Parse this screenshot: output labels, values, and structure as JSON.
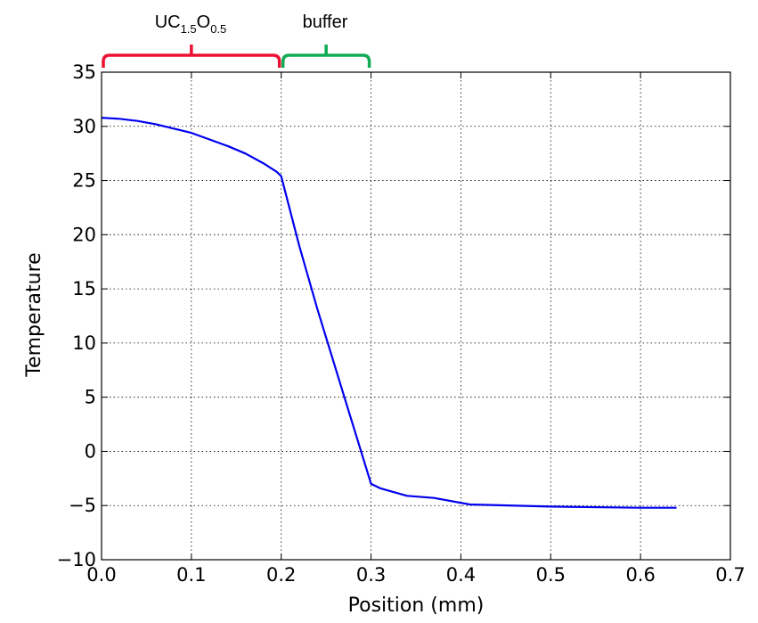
{
  "chart_data": {
    "type": "line",
    "xlabel": "Position (mm)",
    "ylabel": "Temperature",
    "xlim": [
      0.0,
      0.7
    ],
    "ylim": [
      -10,
      35
    ],
    "x_ticks": [
      "0.0",
      "0.1",
      "0.2",
      "0.3",
      "0.4",
      "0.5",
      "0.6",
      "0.7"
    ],
    "y_ticks": [
      "−10",
      "−5",
      "0",
      "5",
      "10",
      "15",
      "20",
      "25",
      "30",
      "35"
    ],
    "grid": true,
    "series": [
      {
        "color": "#0000ee",
        "x": [
          0.0,
          0.02,
          0.04,
          0.06,
          0.08,
          0.1,
          0.12,
          0.14,
          0.16,
          0.18,
          0.195,
          0.2,
          0.22,
          0.24,
          0.26,
          0.28,
          0.3,
          0.31,
          0.34,
          0.37,
          0.41,
          0.5,
          0.6,
          0.64
        ],
        "y": [
          30.8,
          30.7,
          30.5,
          30.2,
          29.8,
          29.4,
          28.8,
          28.2,
          27.5,
          26.6,
          25.8,
          25.4,
          19.0,
          13.2,
          7.8,
          2.4,
          -3.0,
          -3.4,
          -4.1,
          -4.3,
          -4.9,
          -5.1,
          -5.2,
          -5.2
        ]
      }
    ],
    "regions": [
      {
        "label_main": "UC",
        "label_sub1": "1.5",
        "label_mid": "O",
        "label_sub2": "0.5",
        "x_start": 0.0,
        "x_end": 0.2,
        "color": "#ee1133"
      },
      {
        "label_main": "buffer",
        "x_start": 0.2,
        "x_end": 0.3,
        "color": "#11aa55"
      }
    ]
  }
}
